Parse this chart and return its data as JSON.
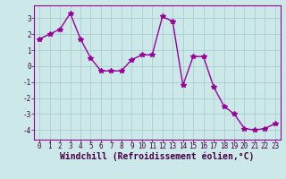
{
  "x": [
    0,
    1,
    2,
    3,
    4,
    5,
    6,
    7,
    8,
    9,
    10,
    11,
    12,
    13,
    14,
    15,
    16,
    17,
    18,
    19,
    20,
    21,
    22,
    23
  ],
  "y": [
    1.7,
    2.0,
    2.3,
    3.3,
    1.7,
    0.5,
    -0.3,
    -0.3,
    -0.3,
    0.4,
    0.7,
    0.7,
    3.1,
    2.8,
    -1.2,
    0.6,
    0.6,
    -1.3,
    -2.5,
    -3.0,
    -3.9,
    -4.0,
    -3.9,
    -3.6
  ],
  "line_color": "#990099",
  "marker": "*",
  "marker_size": 4,
  "bg_color": "#cce8e8",
  "grid_color": "#aacece",
  "xlabel": "Windchill (Refroidissement éolien,°C)",
  "xlim": [
    -0.5,
    23.5
  ],
  "ylim": [
    -4.6,
    3.8
  ],
  "yticks": [
    -4,
    -3,
    -2,
    -1,
    0,
    1,
    2,
    3
  ],
  "xticks": [
    0,
    1,
    2,
    3,
    4,
    5,
    6,
    7,
    8,
    9,
    10,
    11,
    12,
    13,
    14,
    15,
    16,
    17,
    18,
    19,
    20,
    21,
    22,
    23
  ],
  "tick_label_fontsize": 5.5,
  "xlabel_fontsize": 7.0,
  "line_width": 1.0,
  "spine_color": "#990099",
  "tick_color": "#440044",
  "xlabel_color": "#440044"
}
